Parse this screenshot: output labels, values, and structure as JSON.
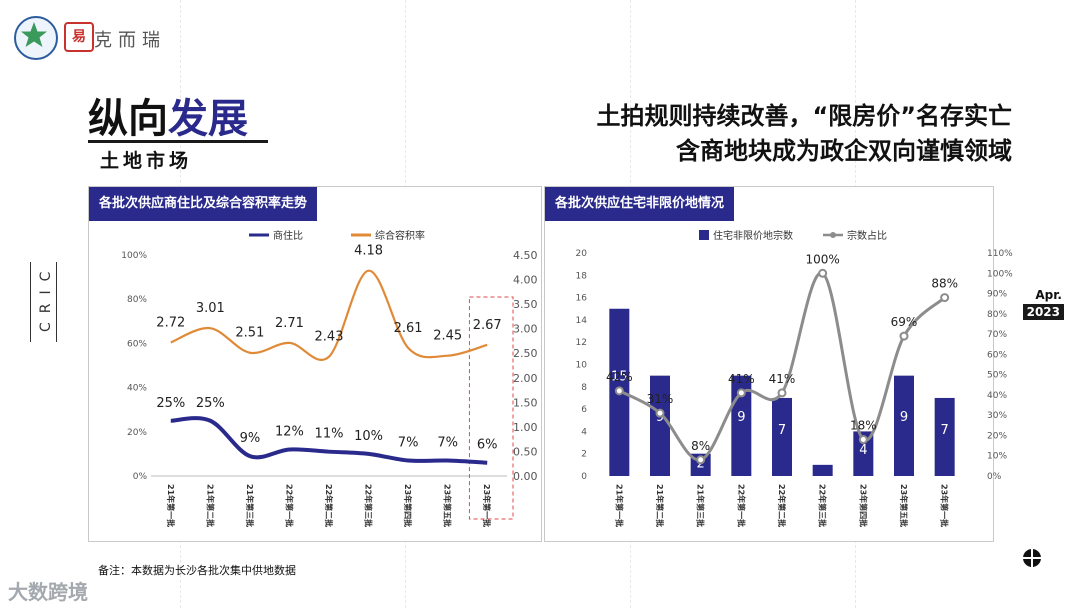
{
  "brand": {
    "seal_char": "易",
    "name": "克而瑞"
  },
  "title": {
    "part1": "纵向",
    "part2": "发展",
    "subtitle": "土地市场"
  },
  "headline": {
    "line1": "土拍规则持续改善，“限房价”名存实亡",
    "line2": "含商地块成为政企双向谨慎领域"
  },
  "side_label": "CRIC",
  "date": {
    "month": "Apr.",
    "year": "2023"
  },
  "note": "备注：本数据为长沙各批次集中供地数据",
  "watermark": "大数跨境",
  "icons": {
    "logo": "cric-star-logo",
    "seal": "red-seal-logo",
    "corner": "crosshair-circle-icon"
  },
  "colors": {
    "navy": "#2a2a8c",
    "orange": "#e08a38",
    "gray": "#8c8c8c"
  },
  "chart_data": [
    {
      "type": "line",
      "title": "各批次供应商住比及综合容积率走势",
      "categories": [
        "21年第一批",
        "21年第二批",
        "21年第三批",
        "22年第一批",
        "22年第二批",
        "22年第三批",
        "23年第四批",
        "23年第五批",
        "23年第一批"
      ],
      "series": [
        {
          "name": "商住比",
          "axis": "left",
          "values": [
            25,
            25,
            9,
            12,
            11,
            10,
            7,
            7,
            6
          ],
          "labels": [
            "25%",
            "25%",
            "9%",
            "12%",
            "11%",
            "10%",
            "7%",
            "7%",
            "6%"
          ],
          "color": "#2a2a8c"
        },
        {
          "name": "综合容积率",
          "axis": "right",
          "values": [
            2.72,
            3.01,
            2.51,
            2.71,
            2.43,
            4.18,
            2.61,
            2.45,
            2.67
          ],
          "labels": [
            "2.72",
            "3.01",
            "2.51",
            "2.71",
            "2.43",
            "4.18",
            "2.61",
            "2.45",
            "2.67"
          ],
          "color": "#e08a38"
        }
      ],
      "y_left": {
        "range": [
          0,
          100
        ],
        "ticks": [
          "0%",
          "20%",
          "40%",
          "60%",
          "80%",
          "100%"
        ]
      },
      "y_right": {
        "range": [
          0,
          4.5
        ],
        "ticks": [
          "0.00",
          "0.50",
          "1.00",
          "1.50",
          "2.00",
          "2.50",
          "3.00",
          "3.50",
          "4.00",
          "4.50"
        ]
      },
      "highlight_last": true,
      "legend": "top"
    },
    {
      "type": "bar",
      "title": "各批次供应住宅非限价地情况",
      "categories": [
        "21年第一批",
        "21年第二批",
        "21年第三批",
        "22年第一批",
        "22年第二批",
        "22年第三批",
        "23年第四批",
        "23年第五批",
        "23年第一批"
      ],
      "series": [
        {
          "name": "住宅非限价地宗数",
          "type": "bar",
          "axis": "left",
          "values": [
            15,
            9,
            2,
            9,
            7,
            1,
            4,
            9,
            7
          ],
          "labels": [
            "15",
            "9",
            "2",
            "9",
            "7",
            "",
            "4",
            "9",
            "7"
          ],
          "color": "#2a2a8c"
        },
        {
          "name": "宗数占比",
          "type": "line",
          "axis": "right",
          "values": [
            42,
            31,
            8,
            41,
            41,
            100,
            18,
            69,
            88
          ],
          "labels": [
            "42%",
            "31%",
            "8%",
            "41%",
            "41%",
            "100%",
            "18%",
            "69%",
            "88%"
          ],
          "color": "#8c8c8c"
        }
      ],
      "y_left": {
        "range": [
          0,
          20
        ],
        "ticks": [
          "0",
          "2",
          "4",
          "6",
          "8",
          "10",
          "12",
          "14",
          "16",
          "18",
          "20"
        ]
      },
      "y_right": {
        "range": [
          0,
          110
        ],
        "ticks": [
          "0%",
          "10%",
          "20%",
          "30%",
          "40%",
          "50%",
          "60%",
          "70%",
          "80%",
          "90%",
          "100%",
          "110%"
        ]
      },
      "legend": "top"
    }
  ]
}
